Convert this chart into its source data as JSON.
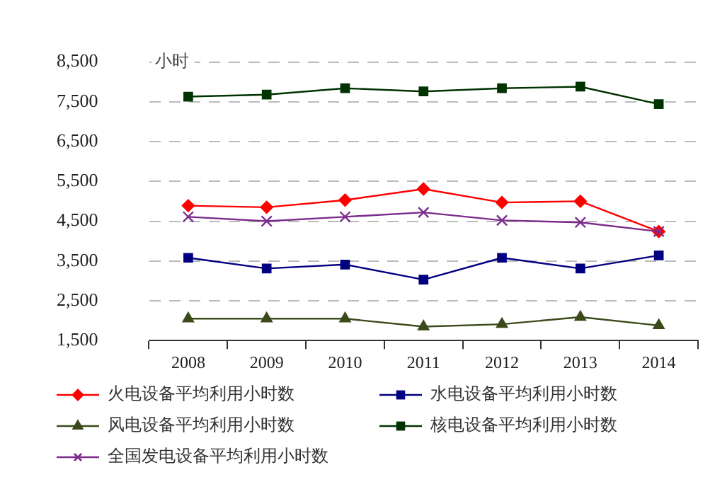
{
  "chart_data": {
    "type": "line",
    "ylabel": "小时",
    "categories": [
      "2008",
      "2009",
      "2010",
      "2011",
      "2012",
      "2013",
      "2014"
    ],
    "ylim": [
      1500,
      8500
    ],
    "yticks": [
      {
        "value": 1500,
        "label": "1,500"
      },
      {
        "value": 2500,
        "label": "2,500"
      },
      {
        "value": 3500,
        "label": "3,500"
      },
      {
        "value": 4500,
        "label": "4,500"
      },
      {
        "value": 5500,
        "label": "5,500"
      },
      {
        "value": 6500,
        "label": "6,500"
      },
      {
        "value": 7500,
        "label": "7,500"
      },
      {
        "value": 8500,
        "label": "8,500"
      }
    ],
    "grid": "y",
    "legend": "bottom",
    "series": [
      {
        "name": "火电设备平均利用小时数",
        "color": "#ff0000",
        "marker": "diamond",
        "values": [
          4890,
          4850,
          5030,
          5310,
          4970,
          5000,
          4240
        ]
      },
      {
        "name": "水电设备平均利用小时数",
        "color": "#000080",
        "marker": "square",
        "values": [
          3580,
          3310,
          3410,
          3030,
          3580,
          3310,
          3640
        ]
      },
      {
        "name": "风电设备平均利用小时数",
        "color": "#3a4a1a",
        "marker": "triangle",
        "values": [
          2050,
          2050,
          2050,
          1850,
          1910,
          2090,
          1880
        ]
      },
      {
        "name": "核电设备平均利用小时数",
        "color": "#003300",
        "marker": "square",
        "values": [
          7630,
          7680,
          7840,
          7760,
          7840,
          7880,
          7440
        ]
      },
      {
        "name": "全国发电设备平均利用小时数",
        "color": "#7b2c8b",
        "marker": "cross",
        "values": [
          4610,
          4500,
          4610,
          4720,
          4520,
          4470,
          4240
        ]
      }
    ]
  }
}
